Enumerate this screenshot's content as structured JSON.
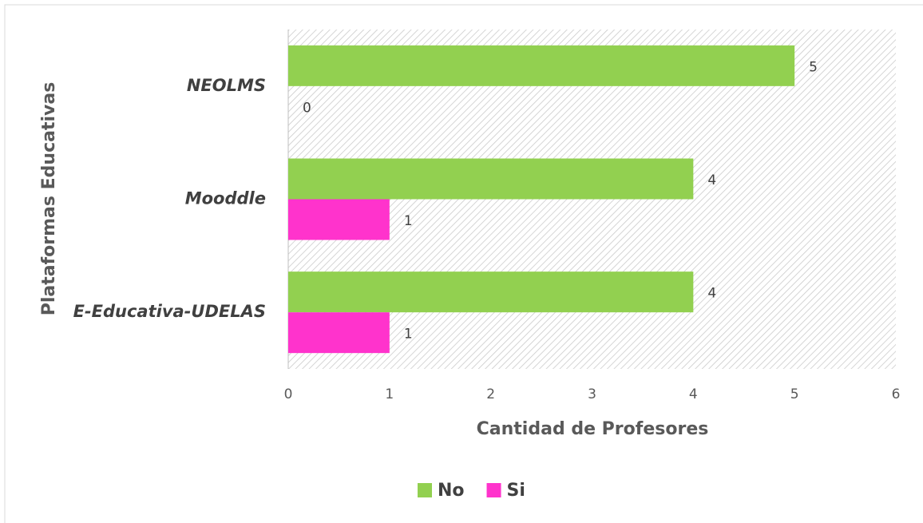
{
  "chart_data": {
    "type": "bar",
    "orientation": "horizontal",
    "x_label": "Cantidad de Profesores",
    "y_label": "Plataformas Educativas",
    "categories": [
      "NEOLMS",
      "Mooddle",
      "E-Educativa-UDELAS"
    ],
    "series": [
      {
        "name": "No",
        "color": "#92d050",
        "values": [
          5,
          4,
          4
        ]
      },
      {
        "name": "Si",
        "color": "#ff33cc",
        "values": [
          0,
          1,
          1
        ]
      }
    ],
    "xlim": [
      0,
      6
    ],
    "xticks": [
      0,
      1,
      2,
      3,
      4,
      5,
      6
    ],
    "legend": "bottom"
  }
}
